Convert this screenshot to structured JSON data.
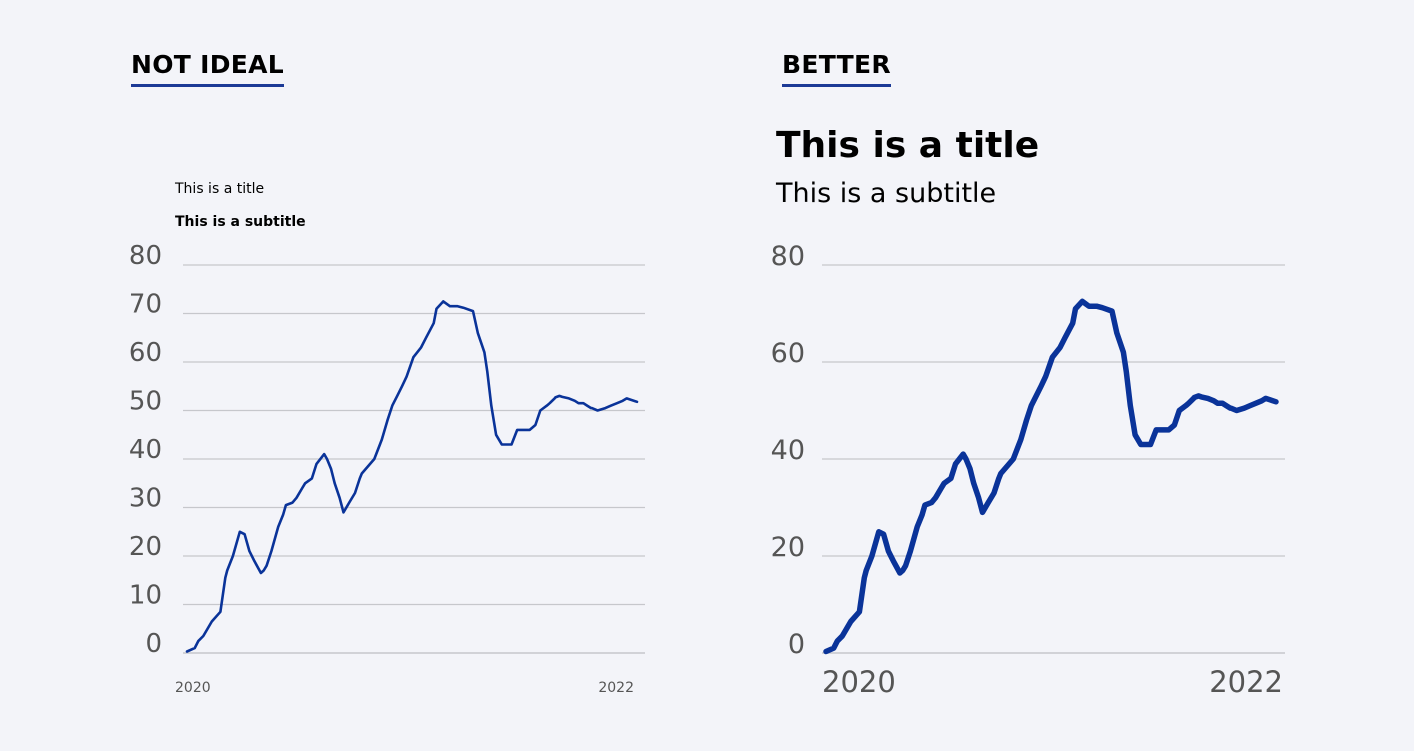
{
  "panels": {
    "left_heading": "NOT IDEAL",
    "right_heading": "BETTER"
  },
  "colors": {
    "line": "#0a3399",
    "grid": "#c6c7cc",
    "tick_label": "#555555",
    "heading_underline": "#1c3a96",
    "background": "#f3f4f9"
  },
  "chart_data": [
    {
      "type": "line",
      "title": "This is a title",
      "subtitle": "This is a subtitle",
      "xlabel": "",
      "ylabel": "",
      "ylim": [
        0,
        80
      ],
      "y_ticks": [
        "0",
        "10",
        "20",
        "30",
        "40",
        "50",
        "60",
        "70",
        "80"
      ],
      "x_tick_labels": [
        "2020",
        "2022"
      ],
      "xlim": [
        2020.0,
        2022.0
      ],
      "grid": true,
      "legend": "none",
      "series": [
        {
          "x": [
            2020.0,
            2020.035,
            2020.052,
            2020.074,
            2020.113,
            2020.152,
            2020.174,
            2020.183,
            2020.209,
            2020.24,
            2020.262,
            2020.284,
            2020.306,
            2020.336,
            2020.349,
            2020.362,
            2020.384,
            2020.415,
            2020.437,
            2020.45,
            2020.48,
            2020.498,
            2020.524,
            2020.537,
            2020.568,
            2020.589,
            2020.624,
            2020.637,
            2020.655,
            2020.672,
            2020.694,
            2020.712,
            2020.738,
            2020.764,
            2020.786,
            2020.795,
            2020.852,
            2020.886,
            2020.912,
            2020.934,
            2020.956,
            2020.978,
            2020.999,
            2021.03,
            2021.065,
            2021.087,
            2021.122,
            2021.135,
            2021.166,
            2021.196,
            2021.231,
            2021.257,
            2021.301,
            2021.323,
            2021.353,
            2021.366,
            2021.384,
            2021.406,
            2021.432,
            2021.476,
            2021.502,
            2021.559,
            2021.585,
            2021.607,
            2021.637,
            2021.65,
            2021.672,
            2021.676,
            2021.694,
            2021.707,
            2021.737,
            2021.764,
            2021.781,
            2021.803,
            2021.82,
            2021.838,
            2021.842,
            2021.868,
            2021.903,
            2021.929,
            2021.956,
            2021.982,
            2022.0,
            2022.047
          ],
          "y": [
            0.3,
            1.0,
            2.5,
            3.5,
            6.5,
            8.5,
            15.5,
            17.0,
            20.0,
            25.0,
            24.5,
            21.0,
            19.0,
            16.5,
            17.0,
            18.0,
            21.0,
            26.0,
            28.5,
            30.5,
            31.0,
            32.0,
            34.0,
            35.0,
            36.0,
            39.0,
            41.0,
            40.0,
            38.0,
            35.0,
            32.0,
            29.0,
            31.0,
            33.0,
            36.0,
            37.0,
            40.0,
            44.0,
            48.0,
            51.0,
            53.0,
            55.0,
            57.0,
            61.0,
            63.0,
            65.0,
            68.0,
            71.0,
            72.5,
            71.5,
            71.5,
            71.2,
            70.5,
            66.0,
            62.0,
            58.0,
            51.0,
            45.0,
            43.0,
            43.0,
            46.0,
            46.0,
            47.0,
            50.0,
            51.0,
            51.5,
            52.5,
            52.7,
            53.0,
            52.8,
            52.5,
            52.0,
            51.5,
            51.5,
            51.0,
            50.5,
            50.5,
            50.0,
            50.5,
            51.0,
            51.5,
            52.0,
            52.5,
            51.8
          ]
        }
      ]
    },
    {
      "type": "line",
      "title": "This is a title",
      "subtitle": "This is a subtitle",
      "xlabel": "",
      "ylabel": "",
      "ylim": [
        0,
        80
      ],
      "y_ticks": [
        "0",
        "20",
        "40",
        "60",
        "80"
      ],
      "x_tick_labels": [
        "2020",
        "2022"
      ],
      "xlim": [
        2020.0,
        2022.0
      ],
      "grid": true,
      "legend": "none",
      "series": [
        {
          "x": [
            2020.0,
            2020.035,
            2020.052,
            2020.074,
            2020.113,
            2020.152,
            2020.174,
            2020.183,
            2020.209,
            2020.24,
            2020.262,
            2020.284,
            2020.306,
            2020.336,
            2020.349,
            2020.362,
            2020.384,
            2020.415,
            2020.437,
            2020.45,
            2020.48,
            2020.498,
            2020.524,
            2020.537,
            2020.568,
            2020.589,
            2020.624,
            2020.637,
            2020.655,
            2020.672,
            2020.694,
            2020.712,
            2020.738,
            2020.764,
            2020.786,
            2020.795,
            2020.852,
            2020.886,
            2020.912,
            2020.934,
            2020.956,
            2020.978,
            2020.999,
            2021.03,
            2021.065,
            2021.087,
            2021.122,
            2021.135,
            2021.166,
            2021.196,
            2021.231,
            2021.257,
            2021.301,
            2021.323,
            2021.353,
            2021.366,
            2021.384,
            2021.406,
            2021.432,
            2021.476,
            2021.502,
            2021.559,
            2021.585,
            2021.607,
            2021.637,
            2021.65,
            2021.672,
            2021.676,
            2021.694,
            2021.707,
            2021.737,
            2021.764,
            2021.781,
            2021.803,
            2021.82,
            2021.838,
            2021.842,
            2021.868,
            2021.903,
            2021.929,
            2021.956,
            2021.982,
            2022.0,
            2022.047
          ],
          "y": [
            0.3,
            1.0,
            2.5,
            3.5,
            6.5,
            8.5,
            15.5,
            17.0,
            20.0,
            25.0,
            24.5,
            21.0,
            19.0,
            16.5,
            17.0,
            18.0,
            21.0,
            26.0,
            28.5,
            30.5,
            31.0,
            32.0,
            34.0,
            35.0,
            36.0,
            39.0,
            41.0,
            40.0,
            38.0,
            35.0,
            32.0,
            29.0,
            31.0,
            33.0,
            36.0,
            37.0,
            40.0,
            44.0,
            48.0,
            51.0,
            53.0,
            55.0,
            57.0,
            61.0,
            63.0,
            65.0,
            68.0,
            71.0,
            72.5,
            71.5,
            71.5,
            71.2,
            70.5,
            66.0,
            62.0,
            58.0,
            51.0,
            45.0,
            43.0,
            43.0,
            46.0,
            46.0,
            47.0,
            50.0,
            51.0,
            51.5,
            52.5,
            52.7,
            53.0,
            52.8,
            52.5,
            52.0,
            51.5,
            51.5,
            51.0,
            50.5,
            50.5,
            50.0,
            50.5,
            51.0,
            51.5,
            52.0,
            52.5,
            51.8
          ]
        }
      ]
    }
  ]
}
